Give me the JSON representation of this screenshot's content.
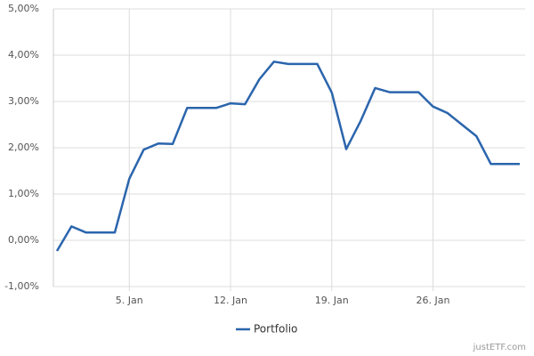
{
  "chart_data": {
    "type": "line",
    "categories": [
      null,
      null,
      null,
      null,
      null,
      "5. Jan",
      null,
      null,
      null,
      null,
      null,
      null,
      "12. Jan",
      null,
      null,
      null,
      null,
      null,
      null,
      "19. Jan",
      null,
      null,
      null,
      null,
      null,
      null,
      "26. Jan",
      null,
      null,
      null,
      null,
      null,
      null
    ],
    "series": [
      {
        "name": "Portfolio",
        "color": "#2b65ad",
        "values": [
          -0.23,
          0.3,
          0.17,
          0.17,
          0.17,
          1.33,
          1.96,
          2.09,
          2.08,
          2.86,
          2.86,
          2.86,
          2.96,
          2.94,
          3.48,
          3.86,
          3.81,
          3.81,
          3.81,
          3.19,
          1.97,
          2.58,
          3.29,
          3.2,
          3.2,
          3.2,
          2.89,
          2.75,
          2.5,
          2.25,
          1.65,
          1.65,
          1.65
        ]
      }
    ],
    "ylim": [
      -1,
      5
    ],
    "yticks": [
      {
        "value": -1,
        "label": "-1,00%"
      },
      {
        "value": 0,
        "label": "0,00%"
      },
      {
        "value": 1,
        "label": "1,00%"
      },
      {
        "value": 2,
        "label": "2,00%"
      },
      {
        "value": 3,
        "label": "3,00%"
      },
      {
        "value": 4,
        "label": "4,00%"
      },
      {
        "value": 5,
        "label": "5,00%"
      }
    ],
    "grid": true,
    "legend": "bottom",
    "credit": "justETF.com"
  }
}
